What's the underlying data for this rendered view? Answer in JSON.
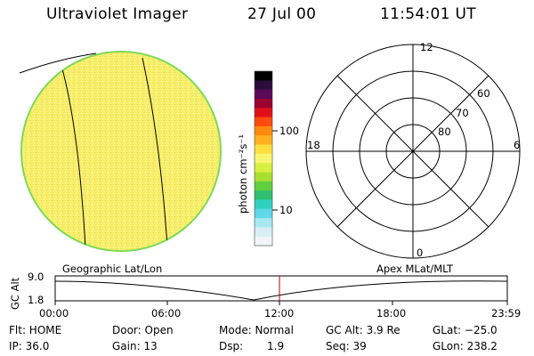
{
  "header": {
    "title": "Ultraviolet Imager",
    "date": "27 Jul 00",
    "time": "11:54:01 UT"
  },
  "left_panel": {
    "caption": "Geographic Lat/Lon",
    "disk_color": "#f5f07a",
    "rim_color": "#7ed957"
  },
  "colorbar": {
    "unit_label": "photon cm⁻²s⁻¹",
    "ticks": [
      "100",
      "10"
    ],
    "colors": [
      "#000000",
      "#2a0d3a",
      "#5a0a5a",
      "#9a0030",
      "#e0101a",
      "#ff4a10",
      "#ff8a10",
      "#ffb020",
      "#ffe040",
      "#f6f670",
      "#d8f040",
      "#a8e030",
      "#60d040",
      "#30c070",
      "#30d0c0",
      "#60d8e8",
      "#a8e8f0",
      "#d8f0f4",
      "#f0f6f8"
    ]
  },
  "polar_plot": {
    "caption": "Apex MLat/MLT",
    "mlt_labels": {
      "top": "12",
      "bottom": "0",
      "left": "18",
      "right": "6"
    },
    "lat_labels": [
      "60",
      "70",
      "80"
    ]
  },
  "timeline": {
    "y_axis_label": "GC Alt",
    "y_max": "9.0",
    "y_min": "1.8",
    "x_ticks": [
      "00:00",
      "06:00",
      "12:00",
      "18:00",
      "23:59"
    ],
    "marker_color": "#c00000"
  },
  "status": {
    "row1": {
      "flt": "Flt: HOME",
      "door": "Door: Open",
      "mode": "Mode: Normal",
      "gcalt": "GC Alt: 3.9 Re",
      "glat": "GLat: −25.0"
    },
    "row2": {
      "ip": "IP: 36.0",
      "gain": "Gain: 13",
      "dsp_label": "Dsp:",
      "dsp_value": "1.9",
      "seq": "Seq: 39",
      "glon": "GLon: 238.2"
    }
  }
}
